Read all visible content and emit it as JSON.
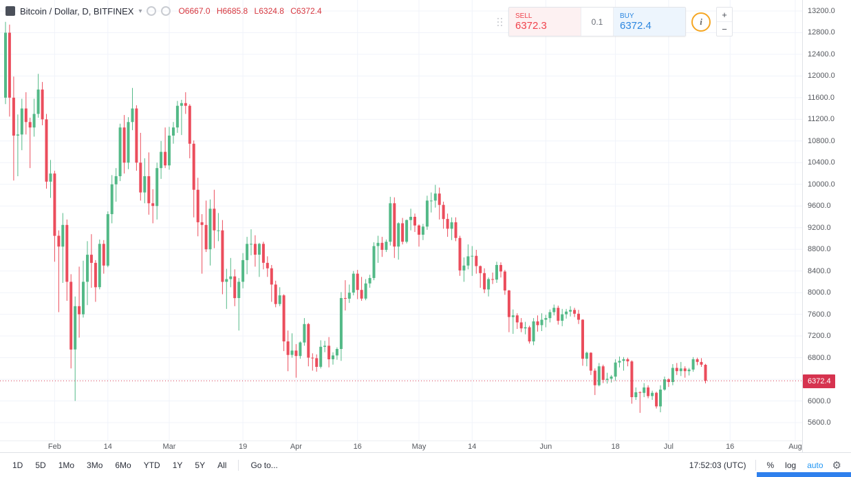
{
  "legend": {
    "symbol": "Bitcoin / Dollar, D, BITFINEX",
    "caret_icon": "▾",
    "ohlc": "O6667.0 H6685.8 L6324.8 C6372.4"
  },
  "order_panel": {
    "sell_label": "SELL",
    "sell_price": "6372.3",
    "spread": "0.1",
    "buy_label": "BUY",
    "buy_price": "6372.4",
    "info_icon": "i",
    "plus_label": "+",
    "minus_label": "−"
  },
  "toolbar": {
    "ranges": [
      "1D",
      "5D",
      "1Mo",
      "3Mo",
      "6Mo",
      "YTD",
      "1Y",
      "5Y",
      "All"
    ],
    "goto_label": "Go to...",
    "clock": "17:52:03 (UTC)",
    "percent_label": "%",
    "log_label": "log",
    "auto_label": "auto",
    "gear_icon": "⚙"
  },
  "colors": {
    "up": "#53b987",
    "down": "#eb4d5c",
    "grid": "#f0f3fa",
    "tag_bg": "#d6334f",
    "sell_red": "#f0424c",
    "buy_blue": "#2d87e0",
    "auto_blue": "#2196f3",
    "info_orange": "#f5a623",
    "blue_strip": "#2f80ed",
    "legend_ohlc_red": "#d6373f"
  },
  "chart_data": {
    "type": "candlestick",
    "title": "Bitcoin / Dollar, D, BITFINEX",
    "interval": "1 day",
    "ylim": [
      5600,
      13200
    ],
    "y_tick_step": 400,
    "x_tick_labels": [
      {
        "text": "Feb",
        "i": 12
      },
      {
        "text": "14",
        "i": 25
      },
      {
        "text": "Mar",
        "i": 40
      },
      {
        "text": "19",
        "i": 58
      },
      {
        "text": "Apr",
        "i": 71
      },
      {
        "text": "16",
        "i": 86
      },
      {
        "text": "May",
        "i": 101
      },
      {
        "text": "14",
        "i": 114
      },
      {
        "text": "Jun",
        "i": 132
      },
      {
        "text": "18",
        "i": 149
      },
      {
        "text": "Jul",
        "i": 162
      },
      {
        "text": "16",
        "i": 177
      },
      {
        "text": "Aug",
        "i": 193
      }
    ],
    "last_price": 6372.4,
    "last_candle": {
      "open": 6667.0,
      "high": 6685.8,
      "low": 6324.8,
      "close": 6372.4
    },
    "candles": [
      [
        11600,
        13000,
        11480,
        12800
      ],
      [
        12800,
        12950,
        11250,
        11600
      ],
      [
        11600,
        11990,
        10070,
        10900
      ],
      [
        10900,
        11290,
        10150,
        10920
      ],
      [
        10920,
        11580,
        10630,
        11400
      ],
      [
        11400,
        11700,
        10920,
        11150
      ],
      [
        11150,
        11230,
        10300,
        11050
      ],
      [
        11050,
        11580,
        10880,
        11300
      ],
      [
        11300,
        12040,
        11230,
        11750
      ],
      [
        11750,
        11890,
        11090,
        11200
      ],
      [
        11200,
        11300,
        9920,
        10050
      ],
      [
        10050,
        10450,
        9750,
        10200
      ],
      [
        10200,
        10250,
        8570,
        9050
      ],
      [
        9050,
        9150,
        7640,
        8850
      ],
      [
        8850,
        9470,
        8180,
        9250
      ],
      [
        9250,
        9350,
        7850,
        8200
      ],
      [
        8200,
        8340,
        6600,
        6950
      ],
      [
        6950,
        7930,
        6000,
        7750
      ],
      [
        7750,
        8480,
        7170,
        7600
      ],
      [
        7600,
        8590,
        7540,
        8200
      ],
      [
        8200,
        8950,
        7770,
        8700
      ],
      [
        8700,
        9080,
        8090,
        8550
      ],
      [
        8550,
        8600,
        7830,
        8100
      ],
      [
        8100,
        8980,
        8060,
        8900
      ],
      [
        8900,
        8970,
        8350,
        8500
      ],
      [
        8500,
        9500,
        8470,
        9450
      ],
      [
        9450,
        10170,
        9280,
        10000
      ],
      [
        10000,
        10300,
        9680,
        10150
      ],
      [
        10150,
        11120,
        10060,
        11050
      ],
      [
        11050,
        11280,
        10200,
        10400
      ],
      [
        10400,
        11240,
        10280,
        11150
      ],
      [
        11150,
        11780,
        11000,
        11400
      ],
      [
        11400,
        11460,
        10250,
        10400
      ],
      [
        10400,
        10950,
        9700,
        9850
      ],
      [
        9850,
        10480,
        9650,
        10150
      ],
      [
        10150,
        10590,
        9440,
        9650
      ],
      [
        9650,
        9910,
        9280,
        9600
      ],
      [
        9600,
        10400,
        9350,
        10300
      ],
      [
        10300,
        10800,
        10100,
        10600
      ],
      [
        10600,
        11050,
        10300,
        10350
      ],
      [
        10350,
        11060,
        10270,
        10900
      ],
      [
        10900,
        11150,
        10750,
        11050
      ],
      [
        11050,
        11540,
        10950,
        11450
      ],
      [
        11450,
        11560,
        10910,
        11500
      ],
      [
        11500,
        11700,
        11300,
        11450
      ],
      [
        11450,
        11480,
        10480,
        10750
      ],
      [
        10750,
        10810,
        9390,
        9900
      ],
      [
        9900,
        10120,
        9040,
        9300
      ],
      [
        9300,
        9450,
        8350,
        9250
      ],
      [
        9250,
        9700,
        8750,
        8800
      ],
      [
        8800,
        9720,
        8500,
        9550
      ],
      [
        9550,
        9900,
        8820,
        9150
      ],
      [
        9150,
        9470,
        8950,
        9150
      ],
      [
        9150,
        9340,
        7970,
        8200
      ],
      [
        8200,
        8440,
        7700,
        8250
      ],
      [
        8250,
        8640,
        8100,
        8300
      ],
      [
        8300,
        8430,
        7750,
        7900
      ],
      [
        7900,
        8270,
        7300,
        8200
      ],
      [
        8200,
        8730,
        8080,
        8600
      ],
      [
        8600,
        9030,
        8340,
        8900
      ],
      [
        8900,
        9170,
        8690,
        8900
      ],
      [
        8900,
        9060,
        8480,
        8700
      ],
      [
        8700,
        8920,
        8290,
        8900
      ],
      [
        8900,
        8940,
        8430,
        8550
      ],
      [
        8550,
        8670,
        8290,
        8450
      ],
      [
        8450,
        8510,
        7830,
        8150
      ],
      [
        8150,
        8220,
        7730,
        7790
      ],
      [
        7790,
        8100,
        7750,
        7950
      ],
      [
        7950,
        7970,
        6920,
        7100
      ],
      [
        7100,
        7300,
        6550,
        6850
      ],
      [
        6850,
        7250,
        6800,
        6930
      ],
      [
        6930,
        7050,
        6430,
        6830
      ],
      [
        6830,
        7100,
        6780,
        7080
      ],
      [
        7080,
        7530,
        7020,
        7420
      ],
      [
        7420,
        7440,
        6640,
        6800
      ],
      [
        6800,
        6880,
        6560,
        6790
      ],
      [
        6790,
        6860,
        6540,
        6630
      ],
      [
        6630,
        7120,
        6600,
        7000
      ],
      [
        7000,
        7110,
        6900,
        7020
      ],
      [
        7020,
        7180,
        6620,
        6770
      ],
      [
        6770,
        6900,
        6670,
        6840
      ],
      [
        6840,
        6990,
        6760,
        6960
      ],
      [
        6960,
        8010,
        6740,
        7900
      ],
      [
        7900,
        8230,
        7670,
        7890
      ],
      [
        7890,
        8150,
        7810,
        8000
      ],
      [
        8000,
        8400,
        7950,
        8350
      ],
      [
        8350,
        8420,
        7880,
        8050
      ],
      [
        8050,
        8290,
        7850,
        7890
      ],
      [
        7890,
        8250,
        7860,
        8170
      ],
      [
        8170,
        8330,
        8090,
        8270
      ],
      [
        8270,
        8930,
        8230,
        8860
      ],
      [
        8860,
        9050,
        8550,
        8920
      ],
      [
        8920,
        9030,
        8660,
        8790
      ],
      [
        8790,
        8980,
        8750,
        8940
      ],
      [
        8940,
        9770,
        8870,
        9650
      ],
      [
        9650,
        9760,
        8640,
        8850
      ],
      [
        8850,
        9300,
        8610,
        9280
      ],
      [
        9280,
        9380,
        8890,
        8940
      ],
      [
        8940,
        9350,
        8910,
        9340
      ],
      [
        9340,
        9550,
        9150,
        9400
      ],
      [
        9400,
        9460,
        9120,
        9240
      ],
      [
        9240,
        9260,
        8850,
        9070
      ],
      [
        9070,
        9270,
        8970,
        9220
      ],
      [
        9220,
        9790,
        9160,
        9700
      ],
      [
        9700,
        9850,
        9480,
        9700
      ],
      [
        9700,
        9990,
        9570,
        9830
      ],
      [
        9830,
        9940,
        9350,
        9620
      ],
      [
        9620,
        9680,
        9180,
        9360
      ],
      [
        9360,
        9460,
        9030,
        9180
      ],
      [
        9180,
        9390,
        8970,
        9300
      ],
      [
        9300,
        9390,
        8950,
        9010
      ],
      [
        9010,
        9050,
        8310,
        8410
      ],
      [
        8410,
        8650,
        8200,
        8500
      ],
      [
        8500,
        8890,
        8430,
        8670
      ],
      [
        8670,
        8860,
        8310,
        8680
      ],
      [
        8680,
        8790,
        8350,
        8490
      ],
      [
        8490,
        8500,
        8090,
        8360
      ],
      [
        8360,
        8450,
        7990,
        8060
      ],
      [
        8060,
        8280,
        7930,
        8250
      ],
      [
        8250,
        8370,
        8160,
        8240
      ],
      [
        8240,
        8570,
        8180,
        8510
      ],
      [
        8510,
        8560,
        8280,
        8390
      ],
      [
        8390,
        8420,
        7960,
        8040
      ],
      [
        8040,
        8050,
        7270,
        7550
      ],
      [
        7550,
        7690,
        7240,
        7580
      ],
      [
        7580,
        7620,
        7330,
        7450
      ],
      [
        7450,
        7530,
        7270,
        7340
      ],
      [
        7340,
        7460,
        7230,
        7360
      ],
      [
        7360,
        7390,
        7060,
        7100
      ],
      [
        7100,
        7530,
        7030,
        7470
      ],
      [
        7470,
        7580,
        7280,
        7400
      ],
      [
        7400,
        7620,
        7290,
        7500
      ],
      [
        7500,
        7590,
        7360,
        7530
      ],
      [
        7530,
        7690,
        7450,
        7640
      ],
      [
        7640,
        7780,
        7580,
        7720
      ],
      [
        7720,
        7760,
        7410,
        7480
      ],
      [
        7480,
        7700,
        7380,
        7600
      ],
      [
        7600,
        7700,
        7520,
        7650
      ],
      [
        7650,
        7750,
        7560,
        7680
      ],
      [
        7680,
        7720,
        7550,
        7610
      ],
      [
        7610,
        7680,
        7420,
        7500
      ],
      [
        7500,
        7510,
        6650,
        6780
      ],
      [
        6780,
        6910,
        6640,
        6890
      ],
      [
        6890,
        6900,
        6480,
        6560
      ],
      [
        6560,
        6600,
        6110,
        6290
      ],
      [
        6290,
        6700,
        6270,
        6640
      ],
      [
        6640,
        6670,
        6330,
        6390
      ],
      [
        6390,
        6520,
        6320,
        6410
      ],
      [
        6410,
        6480,
        6340,
        6450
      ],
      [
        6450,
        6770,
        6370,
        6710
      ],
      [
        6710,
        6820,
        6620,
        6740
      ],
      [
        6740,
        6810,
        6560,
        6770
      ],
      [
        6770,
        6800,
        6640,
        6730
      ],
      [
        6730,
        6750,
        5950,
        6070
      ],
      [
        6070,
        6250,
        6020,
        6160
      ],
      [
        6160,
        6180,
        5780,
        6150
      ],
      [
        6150,
        6330,
        6070,
        6250
      ],
      [
        6250,
        6290,
        6050,
        6090
      ],
      [
        6090,
        6190,
        6020,
        6150
      ],
      [
        6150,
        6170,
        5860,
        5900
      ],
      [
        5900,
        6290,
        5790,
        6210
      ],
      [
        6210,
        6450,
        6190,
        6400
      ],
      [
        6400,
        6420,
        6260,
        6350
      ],
      [
        6350,
        6680,
        6290,
        6610
      ],
      [
        6610,
        6700,
        6480,
        6550
      ],
      [
        6550,
        6720,
        6460,
        6600
      ],
      [
        6600,
        6640,
        6430,
        6550
      ],
      [
        6550,
        6610,
        6470,
        6580
      ],
      [
        6580,
        6810,
        6540,
        6770
      ],
      [
        6770,
        6800,
        6660,
        6720
      ],
      [
        6720,
        6790,
        6630,
        6670
      ],
      [
        6667,
        6685.8,
        6324.8,
        6372.4
      ]
    ]
  }
}
